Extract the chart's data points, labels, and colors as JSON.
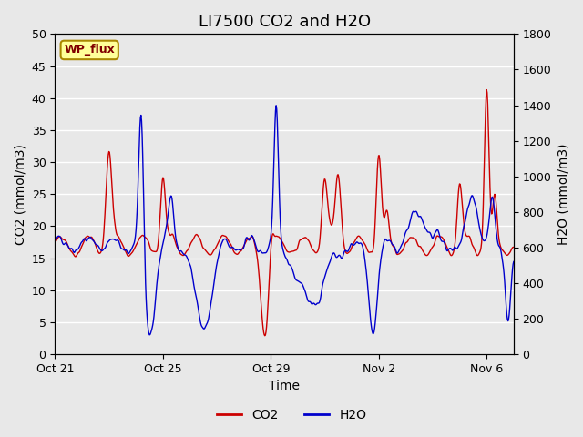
{
  "title": "LI7500 CO2 and H2O",
  "xlabel": "Time",
  "ylabel_left": "CO2 (mmol/m3)",
  "ylabel_right": "H2O (mmol/m3)",
  "ylim_left": [
    0,
    50
  ],
  "ylim_right": [
    0,
    1800
  ],
  "yticks_left": [
    0,
    5,
    10,
    15,
    20,
    25,
    30,
    35,
    40,
    45,
    50
  ],
  "yticks_right": [
    0,
    200,
    400,
    600,
    800,
    1000,
    1200,
    1400,
    1600,
    1800
  ],
  "xtick_labels": [
    "Oct 21",
    "Oct 25",
    "Oct 29",
    "Nov 2",
    "Nov 6"
  ],
  "xtick_positions": [
    0,
    4,
    8,
    12,
    16
  ],
  "total_days": 17,
  "co2_color": "#cc0000",
  "h2o_color": "#0000cc",
  "background_color": "#e8e8e8",
  "plot_bg_color": "#e8e8e8",
  "grid_color": "#ffffff",
  "wp_flux_bg": "#ffff99",
  "wp_flux_border": "#aa8800",
  "wp_flux_text_color": "#800000",
  "legend_co2_color": "#cc0000",
  "legend_h2o_color": "#0000cc",
  "title_fontsize": 13,
  "axis_label_fontsize": 10,
  "tick_fontsize": 9
}
